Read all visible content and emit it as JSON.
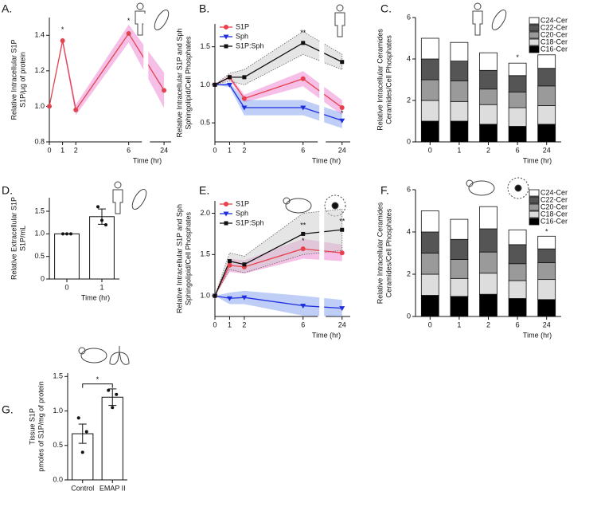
{
  "chart_data": [
    {
      "type": "line",
      "label": "A.",
      "ylabel": [
        "Relative Intracellular S1P",
        "S1P/µg of protein"
      ],
      "xlabel": "Time (hr)",
      "x": [
        0,
        1,
        2,
        6,
        24
      ],
      "xlim": [
        0,
        25
      ],
      "x_break": [
        7,
        22
      ],
      "xticks": [
        0,
        1,
        2,
        6,
        24
      ],
      "ylim": [
        0.8,
        1.5
      ],
      "yticks": [
        0.8,
        {
          "value": 1,
          "label": "1.0"
        },
        1.2,
        1.4
      ],
      "series": [
        {
          "name": "S1P",
          "color": "#e0454f",
          "marker": "circle",
          "band_color": "#ee7fcf",
          "values": [
            1.0,
            1.37,
            0.98,
            1.41,
            1.09
          ],
          "errors": [
            0,
            0.02,
            0.03,
            0.05,
            0.1
          ]
        }
      ],
      "legend": false,
      "annotations": [
        {
          "text": "*",
          "x": 1,
          "y": 1.43
        },
        {
          "text": "*",
          "x": 6,
          "y": 1.48
        }
      ]
    },
    {
      "type": "line",
      "label": "B.",
      "ylabel": [
        "Relative Intracellular S1P and Sph",
        "Sphingolipid/Cell Phosphates"
      ],
      "xlabel": "Time (hr)",
      "x": [
        0,
        1,
        2,
        6,
        24
      ],
      "xlim": [
        0,
        25
      ],
      "x_break": [
        7,
        22
      ],
      "xticks": [
        0,
        1,
        2,
        6,
        24
      ],
      "ylim": [
        0.25,
        1.8
      ],
      "yticks": [
        0.5,
        {
          "value": 1,
          "label": "1.0"
        },
        1.5
      ],
      "series": [
        {
          "name": "S1P",
          "color": "#e8414b",
          "marker": "circle",
          "band_color": "#ee7fcf",
          "values": [
            1.0,
            1.1,
            0.82,
            1.08,
            0.7
          ],
          "errors": [
            0,
            0.03,
            0.05,
            0.1,
            0.1
          ]
        },
        {
          "name": "Sph",
          "color": "#1f2fe0",
          "marker": "triangle",
          "band_color": "#7f9df0",
          "values": [
            1.0,
            1.0,
            0.7,
            0.7,
            0.53
          ],
          "errors": [
            0,
            0.03,
            0.1,
            0.1,
            0.1
          ]
        },
        {
          "name": "S1P:Sph",
          "color": "#111111",
          "marker": "square",
          "band_color": "#cccccc",
          "values": [
            1.0,
            1.1,
            1.1,
            1.55,
            1.3
          ],
          "errors": [
            0,
            0.05,
            0.1,
            0.15,
            0.1
          ]
        }
      ],
      "legend": true,
      "annotations": [
        {
          "text": "**",
          "x": 6,
          "y": 1.68
        },
        {
          "text": "*",
          "x": 24,
          "y": 0.62
        }
      ]
    },
    {
      "type": "stacked_bar",
      "label": "C.",
      "ylabel": [
        "Relative Intracellular Ceramides",
        "Ceramides/Cell Phosphates"
      ],
      "xlabel": "Time (hr)",
      "categories": [
        "0",
        "1",
        "2",
        "6",
        "24"
      ],
      "ylim": [
        0,
        6
      ],
      "yticks": [
        0,
        2,
        4,
        6
      ],
      "series": [
        {
          "name": "C16-Cer",
          "color": "#000000",
          "values": [
            1.0,
            1.0,
            0.85,
            0.75,
            0.85
          ]
        },
        {
          "name": "C18-Cer",
          "color": "#dddddd",
          "values": [
            1.0,
            0.95,
            0.95,
            0.9,
            0.9
          ]
        },
        {
          "name": "C20-Cer",
          "color": "#9a9a9a",
          "values": [
            1.0,
            1.0,
            0.75,
            0.75,
            0.95
          ]
        },
        {
          "name": "C22-Cer",
          "color": "#555555",
          "values": [
            1.0,
            0.95,
            0.9,
            0.8,
            0.85
          ]
        },
        {
          "name": "C24-Cer",
          "color": "#ffffff",
          "values": [
            1.0,
            0.9,
            0.85,
            0.6,
            0.65
          ]
        }
      ],
      "annotations": [
        {
          "text": "*",
          "x": "6",
          "y": 4.05
        }
      ]
    },
    {
      "type": "bar",
      "label": "D.",
      "ylabel": [
        "Relative Extracellular S1P",
        "S1P/mL"
      ],
      "xlabel": "Time (hr)",
      "categories": [
        "0",
        "1"
      ],
      "ylim": [
        0,
        1.8
      ],
      "yticks": [
        0,
        0.5,
        {
          "value": 1,
          "label": "1.0"
        },
        1.5
      ],
      "values": [
        1.0,
        1.38
      ],
      "errors": [
        0,
        0.17
      ],
      "points": [
        [
          1.0,
          1.0,
          1.0
        ],
        [
          1.6,
          1.3,
          1.2
        ]
      ],
      "color": "#ffffff"
    },
    {
      "type": "line",
      "label": "E.",
      "ylabel": [
        "Relative Intracellular S1P and Sph",
        "Sphingolipid/Cell Phosphates"
      ],
      "xlabel": "Time (hr)",
      "x": [
        0,
        1,
        2,
        6,
        24
      ],
      "xlim": [
        0,
        25
      ],
      "x_break": [
        7,
        22
      ],
      "xticks": [
        0,
        1,
        2,
        6,
        24
      ],
      "ylim": [
        0.75,
        2.15
      ],
      "yticks": [
        {
          "value": 1,
          "label": "1.0"
        },
        1.5,
        {
          "value": 2,
          "label": "2.0"
        }
      ],
      "series": [
        {
          "name": "S1P",
          "color": "#e8414b",
          "marker": "circle",
          "band_color": "#ee7fcf",
          "values": [
            1.0,
            1.37,
            1.35,
            1.57,
            1.52
          ],
          "errors": [
            0,
            0.08,
            0.08,
            0.12,
            0.1
          ]
        },
        {
          "name": "Sph",
          "color": "#1f2fe0",
          "marker": "triangle",
          "band_color": "#7f9df0",
          "values": [
            1.0,
            0.97,
            0.98,
            0.88,
            0.85
          ],
          "errors": [
            0,
            0.07,
            0.08,
            0.12,
            0.1
          ]
        },
        {
          "name": "S1P:Sph",
          "color": "#111111",
          "marker": "square",
          "band_color": "#cccccc",
          "values": [
            1.0,
            1.42,
            1.38,
            1.75,
            1.8
          ],
          "errors": [
            0,
            0.1,
            0.1,
            0.25,
            0.25
          ]
        }
      ],
      "legend": true,
      "annotations": [
        {
          "text": "**",
          "x": 6,
          "y": 1.85
        },
        {
          "text": "*",
          "x": 6,
          "y": 1.66
        },
        {
          "text": "**",
          "x": 24,
          "y": 1.9
        }
      ]
    },
    {
      "type": "stacked_bar",
      "label": "F.",
      "ylabel": [
        "Relative Intracellular Ceramides",
        "Ceramides/Cell Phosphates"
      ],
      "xlabel": "Time (hr)",
      "categories": [
        "0",
        "1",
        "2",
        "6",
        "24"
      ],
      "ylim": [
        0,
        6
      ],
      "yticks": [
        0,
        2,
        4,
        6
      ],
      "series": [
        {
          "name": "C16-Cer",
          "color": "#000000",
          "values": [
            1.0,
            0.95,
            1.05,
            0.85,
            0.8
          ]
        },
        {
          "name": "C18-Cer",
          "color": "#dddddd",
          "values": [
            1.0,
            0.85,
            1.0,
            0.85,
            0.95
          ]
        },
        {
          "name": "C20-Cer",
          "color": "#9a9a9a",
          "values": [
            1.0,
            0.9,
            1.0,
            0.8,
            0.8
          ]
        },
        {
          "name": "C22-Cer",
          "color": "#555555",
          "values": [
            1.0,
            0.95,
            1.1,
            0.9,
            0.65
          ]
        },
        {
          "name": "C24-Cer",
          "color": "#ffffff",
          "values": [
            1.0,
            0.95,
            1.05,
            0.7,
            0.6
          ]
        }
      ],
      "annotations": [
        {
          "text": "*",
          "x": "24",
          "y": 4.0
        }
      ]
    },
    {
      "type": "bar",
      "label": "G.",
      "ylabel": [
        "Tissue S1P",
        "pmoles of S1P/mg of protein"
      ],
      "categories": [
        "Control",
        "EMAP II"
      ],
      "ylim": [
        0,
        1.55
      ],
      "yticks": [
        {
          "value": 0,
          "label": "0.0"
        },
        0.5,
        {
          "value": 1,
          "label": "1.0"
        },
        1.5
      ],
      "values": [
        0.67,
        1.2
      ],
      "errors": [
        0.14,
        0.12
      ],
      "points": [
        [
          0.9,
          0.4,
          0.7
        ],
        [
          1.3,
          1.05,
          1.24
        ]
      ],
      "color": "#ffffff",
      "annotations": [
        {
          "text": "*",
          "x": "Control",
          "y": 1.45,
          "bracket": true
        }
      ]
    }
  ]
}
